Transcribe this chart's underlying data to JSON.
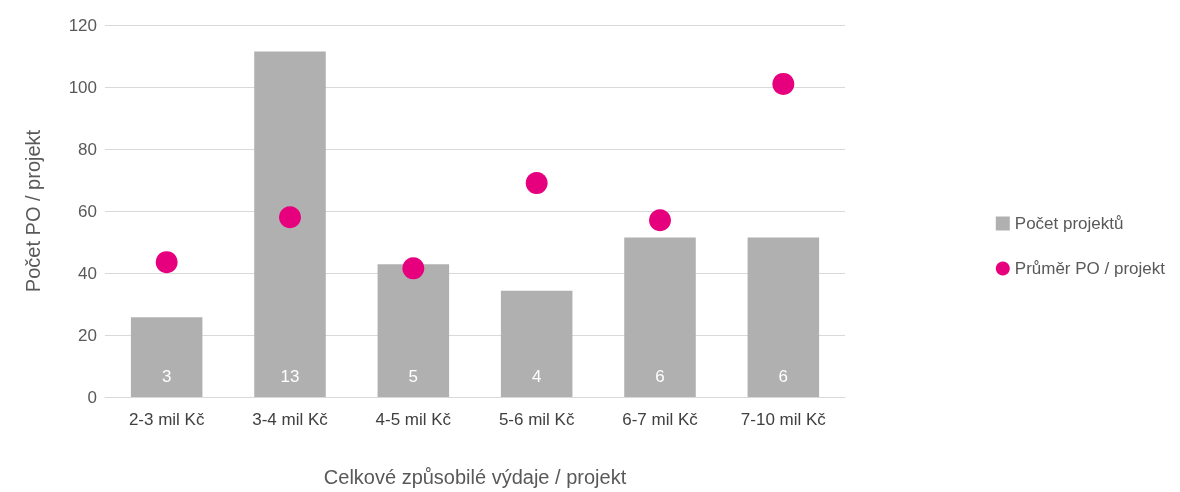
{
  "chart_data": {
    "type": "bar",
    "xlabel": "Celkové způsobilé výdaje / projekt",
    "ylabel": "Počet PO / projekt",
    "categories": [
      "2-3 mil Kč",
      "3-4 mil Kč",
      "4-5 mil Kč",
      "5-6 mil Kč",
      "6-7 mil Kč",
      "7-10 mil Kč"
    ],
    "series": [
      {
        "name": "Počet projektů",
        "axis": "y2",
        "color": "#b0b0b0",
        "values": [
          3,
          13,
          5,
          4,
          6,
          6
        ],
        "value_labels": [
          "3",
          "13",
          "5",
          "4",
          "6",
          "6"
        ]
      },
      {
        "name": "Průměr PO / projekt",
        "type": "scatter",
        "color": "#e6007e",
        "values": [
          43.5,
          58,
          41.5,
          69,
          57,
          101
        ]
      }
    ],
    "ylim": [
      0,
      120
    ],
    "yticks": [
      0,
      20,
      40,
      60,
      80,
      100,
      120
    ],
    "y2lim": [
      0,
      14
    ],
    "tick_labels": "xy",
    "grid": "y",
    "legend": "right",
    "marker": "circle"
  }
}
